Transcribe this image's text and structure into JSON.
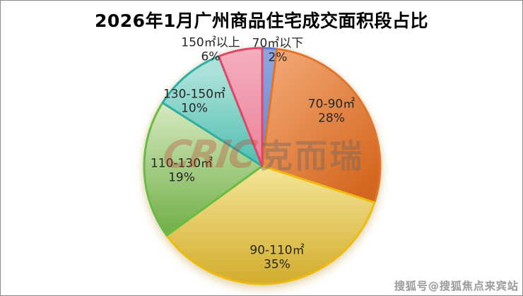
{
  "title": "2026年1月广州商品住宅成交面积段占比",
  "watermark": {
    "en": "CRIC",
    "cn": "克而瑞"
  },
  "credit": "搜狐号@搜狐焦点来宾站",
  "chart_data": {
    "type": "pie",
    "title": "2026年1月广州商品住宅成交面积段占比",
    "direction": "clockwise",
    "start_angle_deg": 0,
    "legend": "none",
    "categories": [
      "70㎡以下",
      "70-90㎡",
      "90-110㎡",
      "110-130㎡",
      "130-150㎡",
      "150㎡以上"
    ],
    "values": [
      2,
      28,
      35,
      19,
      10,
      6
    ],
    "labels": [
      "2%",
      "28%",
      "35%",
      "19%",
      "10%",
      "6%"
    ],
    "colors": [
      {
        "light": "#8FA6E0",
        "dark": "#6585D1",
        "border": "#5C7CCB"
      },
      {
        "light": "#F5AC7A",
        "dark": "#D4671F",
        "border": "#E0752B"
      },
      {
        "light": "#F4E598",
        "dark": "#D2AC2C",
        "border": "#EFBB0A"
      },
      {
        "light": "#D6E9C0",
        "dark": "#6FAE46",
        "border": "#68BC44"
      },
      {
        "light": "#ABE1D8",
        "dark": "#4FBEAF",
        "border": "#2EAEA3"
      },
      {
        "light": "#F5AFBF",
        "dark": "#EA8099",
        "border": "#DE4767"
      }
    ]
  }
}
